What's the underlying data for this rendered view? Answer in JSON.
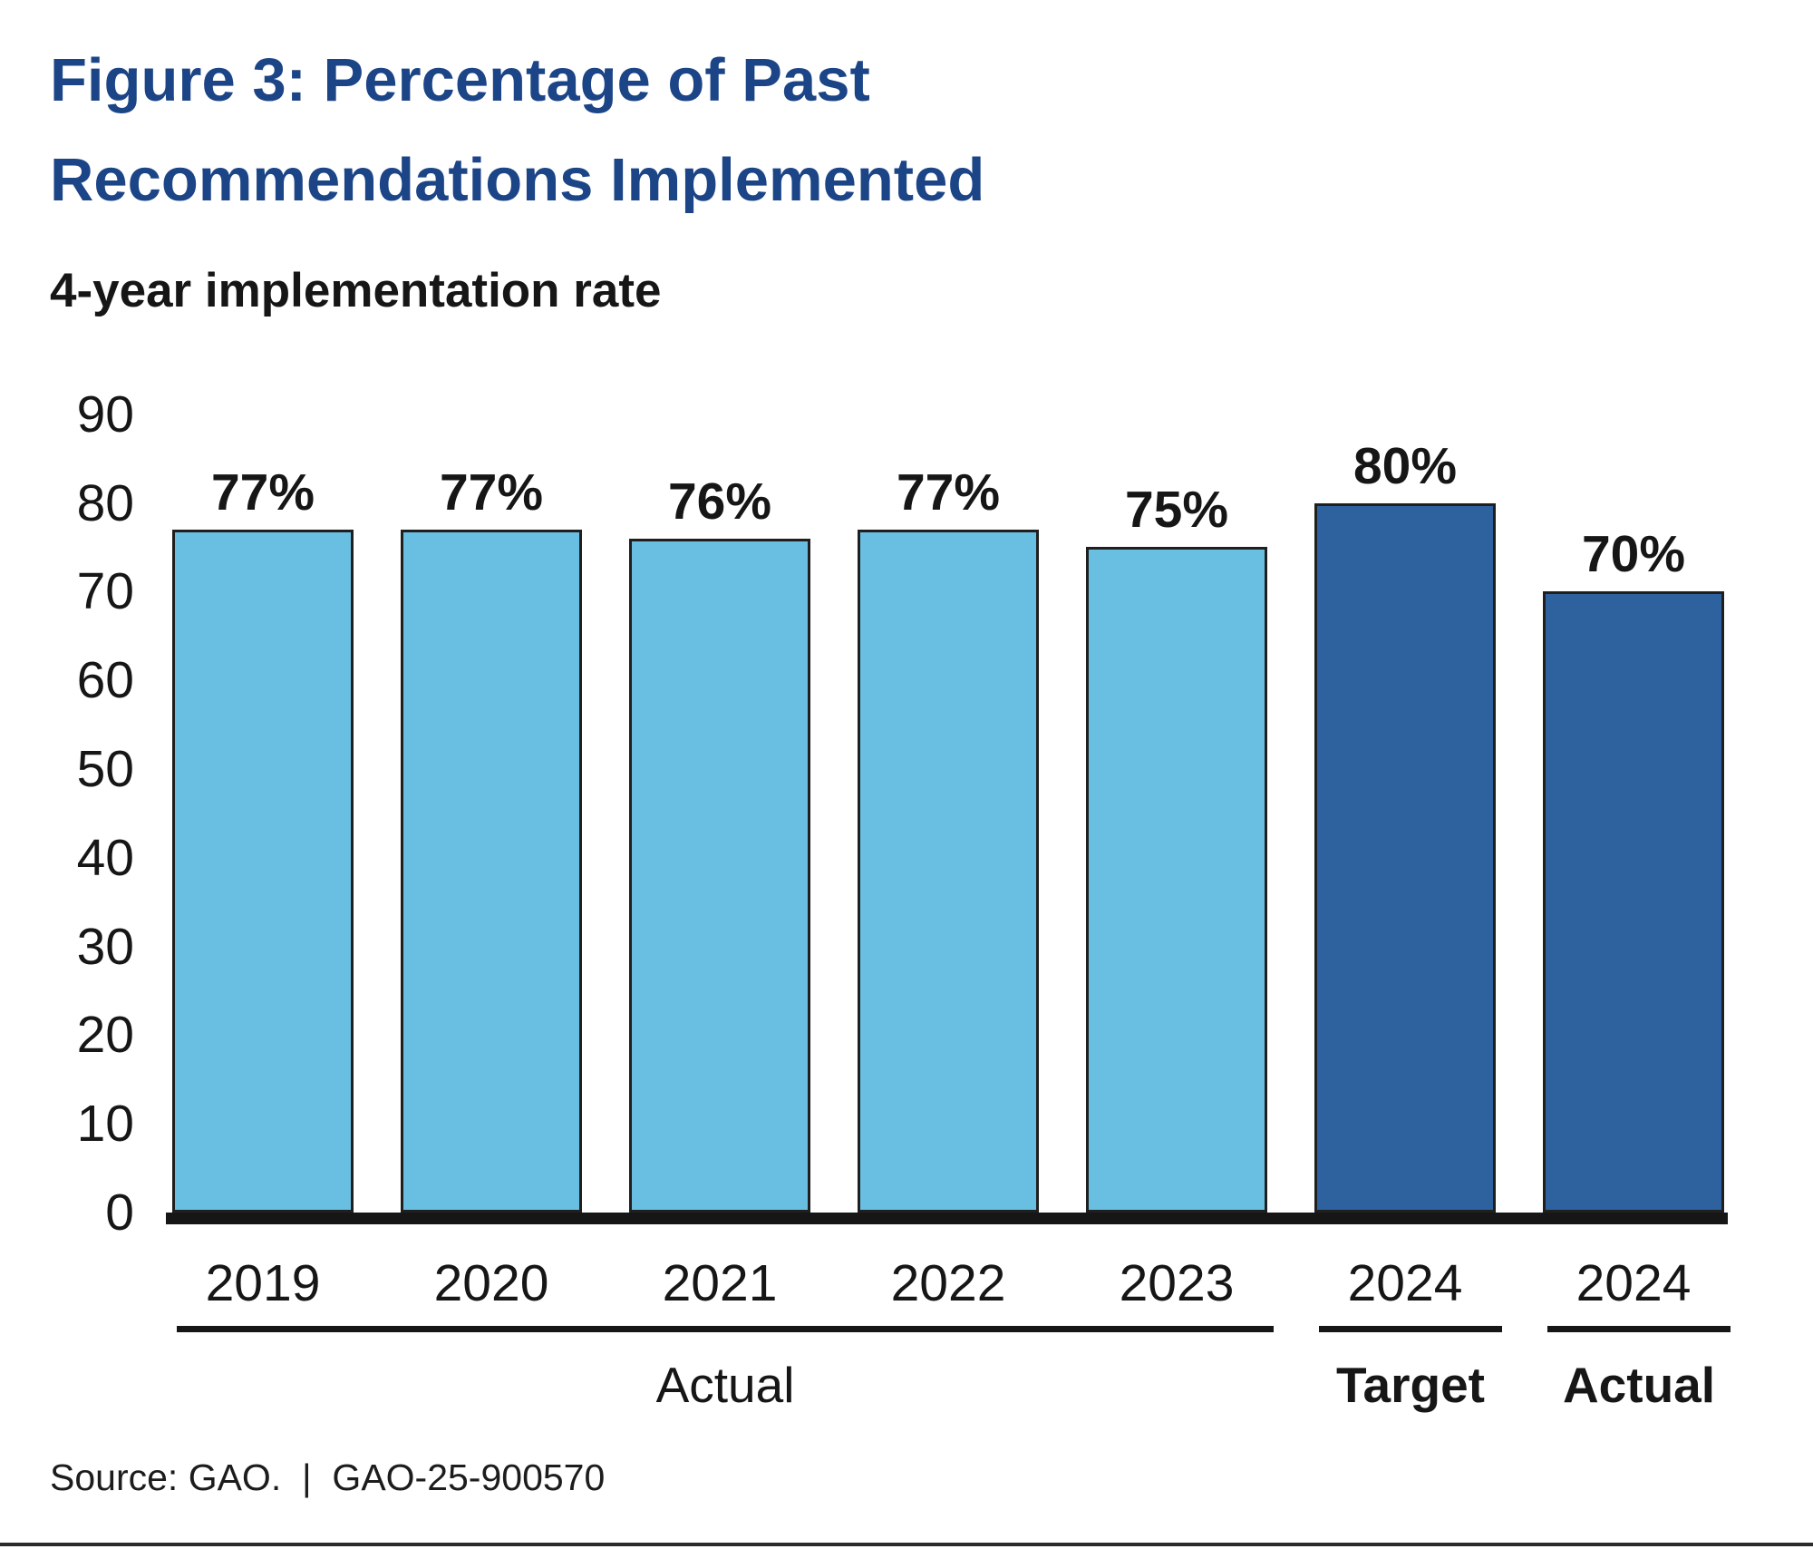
{
  "figure": {
    "title_line1": "Figure 3: Percentage of Past",
    "title_line2": "Recommendations Implemented",
    "subtitle": "4-year implementation rate",
    "source": "Source: GAO.  |  GAO-25-900570",
    "colors": {
      "title": "#1C4587",
      "text": "#161616",
      "light_bar": "#69BFE1",
      "dark_bar": "#2D629F",
      "bar_border": "#1F1F1F",
      "axis": "#161616",
      "window_edge": "#2B2B2B"
    }
  },
  "chart_data": {
    "type": "bar",
    "title": "Figure 3: Percentage of Past Recommendations Implemented",
    "subtitle": "4-year implementation rate",
    "xlabel": "",
    "ylabel": "4-year implementation rate (percent)",
    "ylim": [
      0,
      90
    ],
    "yticks": [
      0,
      10,
      20,
      30,
      40,
      50,
      60,
      70,
      80,
      90
    ],
    "grid": false,
    "legend": null,
    "categories": [
      "2019",
      "2020",
      "2021",
      "2022",
      "2023",
      "2024",
      "2024"
    ],
    "values": [
      77,
      77,
      76,
      77,
      75,
      80,
      70
    ],
    "value_labels": [
      "77%",
      "77%",
      "76%",
      "77%",
      "75%",
      "80%",
      "70%"
    ],
    "bar_color_roles": [
      "light",
      "light",
      "light",
      "light",
      "light",
      "dark",
      "dark"
    ],
    "groups": [
      {
        "label": "Actual",
        "from": 0,
        "to": 4,
        "bold": false
      },
      {
        "label": "Target",
        "from": 5,
        "to": 5,
        "bold": true
      },
      {
        "label": "Actual",
        "from": 6,
        "to": 6,
        "bold": true
      }
    ],
    "source": "Source: GAO.  |  GAO-25-900570"
  }
}
